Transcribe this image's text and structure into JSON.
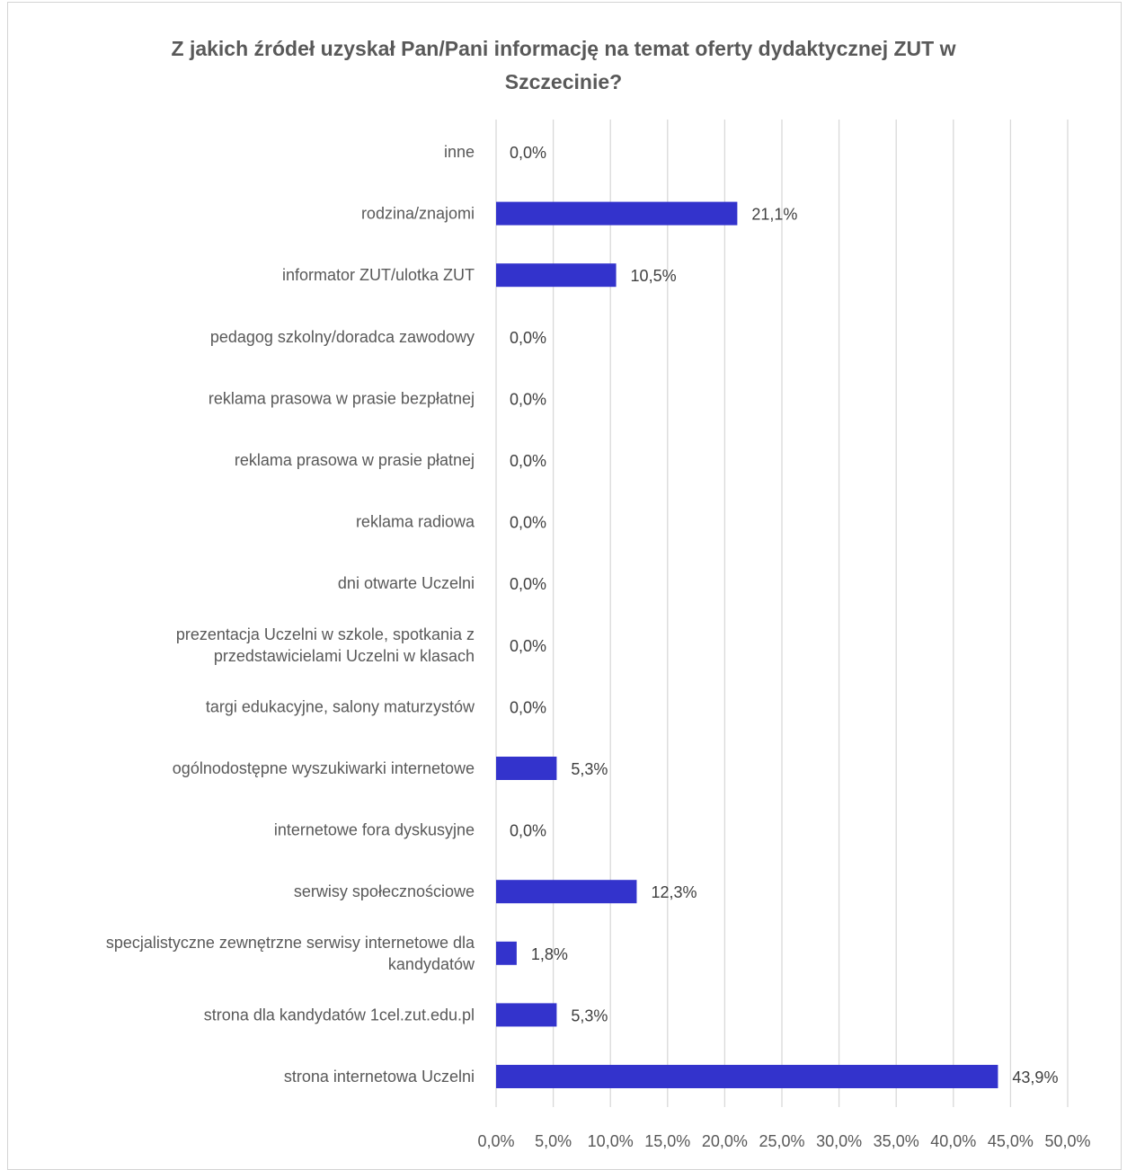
{
  "chart_data": {
    "type": "bar",
    "orientation": "horizontal",
    "title": "Z jakich źródeł uzyskał Pan/Pani informację na temat oferty dydaktycznej ZUT w Szczecinie?",
    "title_lines": [
      "Z jakich źródeł uzyskał Pan/Pani informację na temat oferty dydaktycznej ZUT w",
      "Szczecinie?"
    ],
    "categories": [
      [
        "inne"
      ],
      [
        "rodzina/znajomi"
      ],
      [
        "informator ZUT/ulotka ZUT"
      ],
      [
        "pedagog szkolny/doradca zawodowy"
      ],
      [
        "reklama prasowa w prasie bezpłatnej"
      ],
      [
        "reklama prasowa w prasie płatnej"
      ],
      [
        "reklama radiowa"
      ],
      [
        "dni otwarte Uczelni"
      ],
      [
        "prezentacja Uczelni w szkole, spotkania z",
        "przedstawicielami Uczelni w klasach"
      ],
      [
        "targi edukacyjne, salony maturzystów"
      ],
      [
        "ogólnodostępne wyszukiwarki internetowe"
      ],
      [
        "internetowe fora dyskusyjne"
      ],
      [
        "serwisy społecznościowe"
      ],
      [
        "specjalistyczne zewnętrzne serwisy internetowe dla",
        "kandydatów"
      ],
      [
        "strona dla kandydatów 1cel.zut.edu.pl"
      ],
      [
        "strona internetowa Uczelni"
      ]
    ],
    "values": [
      0.0,
      21.1,
      10.5,
      0.0,
      0.0,
      0.0,
      0.0,
      0.0,
      0.0,
      0.0,
      5.3,
      0.0,
      12.3,
      1.8,
      5.3,
      43.9
    ],
    "value_labels": [
      "0,0%",
      "21,1%",
      "10,5%",
      "0,0%",
      "0,0%",
      "0,0%",
      "0,0%",
      "0,0%",
      "0,0%",
      "0,0%",
      "5,3%",
      "0,0%",
      "12,3%",
      "1,8%",
      "5,3%",
      "43,9%"
    ],
    "xlim": [
      0,
      50
    ],
    "x_ticks": [
      "0,0%",
      "5,0%",
      "10,0%",
      "15,0%",
      "20,0%",
      "25,0%",
      "30,0%",
      "35,0%",
      "40,0%",
      "45,0%",
      "50,0%"
    ],
    "grid": true,
    "legend": "none",
    "bar_color": "#3333cc",
    "grid_color": "#d9d9d9"
  }
}
